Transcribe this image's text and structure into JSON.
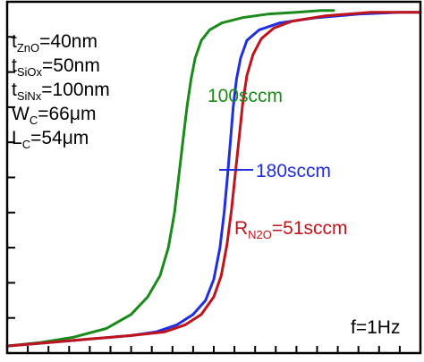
{
  "chart_data": {
    "type": "line",
    "title": "",
    "xlabel": "",
    "ylabel": "",
    "grid": false,
    "legend": "inline labels next to curves",
    "xlim": [
      0,
      100
    ],
    "ylim": [
      0,
      100
    ],
    "parameters": [
      {
        "base": "t",
        "sub": "ZnO",
        "value": "=40nm"
      },
      {
        "base": "t",
        "sub": "SiOx",
        "value": "=50nm"
      },
      {
        "base": "t",
        "sub": "SiNx",
        "value": "=100nm"
      },
      {
        "base": "W",
        "sub": "C",
        "value": "=66μm"
      },
      {
        "base": "L",
        "sub": "C",
        "value": "=54μm"
      }
    ],
    "frequency_label": "f=1Hz",
    "series": [
      {
        "name": "100sccm",
        "label_prefix": "",
        "label_sub": "",
        "color": "#1a8a1a",
        "x": [
          0,
          8,
          16,
          24,
          30,
          34,
          37,
          39,
          40.5,
          41.5,
          42.5,
          43.5,
          44.5,
          45.5,
          47,
          49,
          52,
          57,
          63,
          70,
          76,
          79
        ],
        "y": [
          2,
          3,
          4.5,
          7,
          11,
          16,
          22,
          30,
          40,
          50,
          60,
          70,
          78,
          84,
          89,
          92,
          94,
          95.5,
          96.5,
          97,
          97.5,
          97.5
        ]
      },
      {
        "name": "180sccm",
        "label_prefix": "",
        "label_sub": "",
        "color": "#1f2fe0",
        "x": [
          0,
          10,
          20,
          30,
          36,
          41,
          45,
          48,
          50,
          51.5,
          52.5,
          53.3,
          54,
          54.7,
          55.5,
          56.5,
          58,
          61,
          66,
          75,
          85,
          95,
          100
        ],
        "y": [
          2,
          3,
          4,
          5,
          6,
          8,
          11,
          15,
          21,
          30,
          40,
          50,
          60,
          70,
          78,
          84,
          89,
          92,
          94,
          95.5,
          96.5,
          97,
          97
        ]
      },
      {
        "name": "=51sccm",
        "label_prefix": "R",
        "label_sub": "N2O",
        "color": "#c0141c",
        "x": [
          0,
          10,
          20,
          30,
          38,
          43,
          47,
          50,
          51.8,
          53.2,
          54.3,
          55.2,
          56.1,
          57,
          58,
          59.5,
          61.5,
          64.5,
          69,
          77,
          88,
          100
        ],
        "y": [
          2,
          3,
          4,
          5,
          6,
          8,
          11,
          16,
          22,
          31,
          41,
          51,
          61,
          71,
          79,
          85,
          89.5,
          92.5,
          94.5,
          96,
          97,
          97
        ]
      }
    ]
  }
}
